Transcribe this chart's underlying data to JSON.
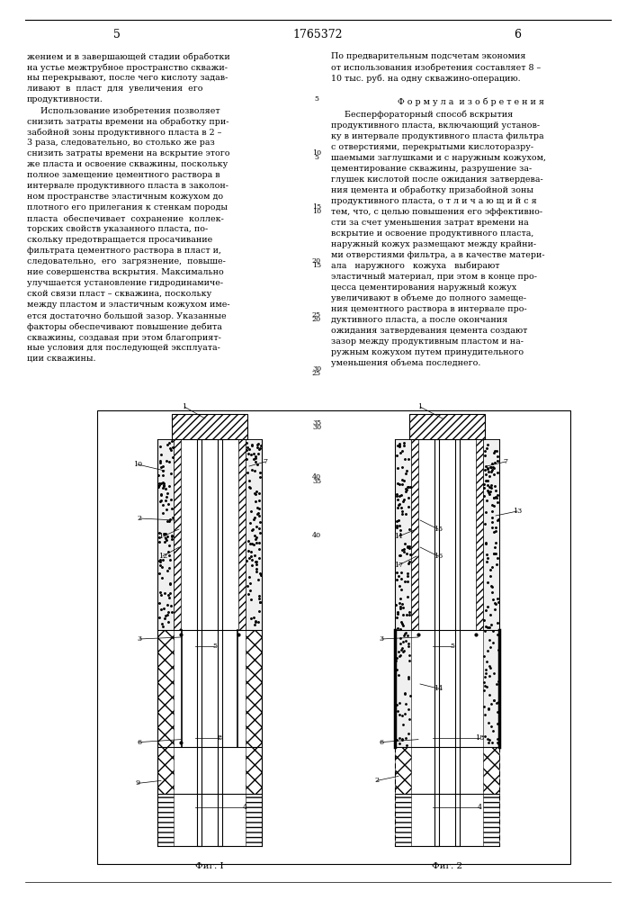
{
  "page_width": 7.07,
  "page_height": 10.0,
  "bg_color": "#ffffff",
  "header_number_left": "5",
  "header_center": "1765372",
  "header_number_right": "6",
  "left_column_text": [
    "жением и в завершающей стадии обработки",
    "на устье межтрубное пространство скважи-",
    "ны перекрывают, после чего кислоту задав-",
    "ливают  в  пласт  для  увеличения  его",
    "продуктивности.",
    "     Использование изобретения позволяет",
    "снизить затраты времени на обработку при-",
    "забойной зоны продуктивного пласта в 2 –",
    "3 раза, следовательно, во столько же раз",
    "снизить затраты времени на вскрытие этого",
    "же пласта и освоение скважины, поскольку",
    "полное замещение цементного раствора в",
    "интервале продуктивного пласта в заколон-",
    "ном пространстве эластичным кожухом до",
    "плотного его прилегания к стенкам породы",
    "пласта  обеспечивает  сохранение  коллек-",
    "торских свойств указанного пласта, по-",
    "скольку предотвращается просачивание",
    "фильтрата цементного раствора в пласт и,",
    "следовательно,  его  загрязнение,  повыше-",
    "ние совершенства вскрытия. Максимально",
    "улучшается установление гидродинамиче-",
    "ской связи пласт – скважина, поскольку",
    "между пластом и эластичным кожухом име-",
    "ется достаточно большой зазор. Указанные",
    "факторы обеспечивают повышение дебита",
    "скважины, создавая при этом благоприят-",
    "ные условия для последующей эксплуата-",
    "ции скважины."
  ],
  "right_column_text_top": [
    "По предварительным подсчетам экономия",
    "от использования изобретения составляет 8 –",
    "10 тыс. руб. на одну скважино-операцию."
  ],
  "formula_header": "Ф о р м у л а  и з о б р е т е н и я",
  "right_column_text_body": [
    "     Бесперфораторный способ вскрытия",
    "продуктивного пласта, включающий установ-",
    "ку в интервале продуктивного пласта фильтра",
    "с отверстиями, перекрытыми кислоторазру-",
    "шаемыми заглушками и с наружным кожухом,",
    "цементирование скважины, разрушение за-",
    "глушек кислотой после ожидания затвердева-",
    "ния цемента и обработку призабойной зоны",
    "продуктивного пласта, о т л и ч а ю щ и й с я",
    "тем, что, с целью повышения его эффективно-",
    "сти за счет уменьшения затрат времени на",
    "вскрытие и освоение продуктивного пласта,",
    "наружный кожух размещают между крайни-",
    "ми отверстиями фильтра, а в качестве матери-",
    "ала   наружного   кожуха   выбирают",
    "эластичный материал, при этом в конце про-",
    "цесса цементирования наружный кожух",
    "увеличивают в объеме до полного замеще-",
    "ния цементного раствора в интервале про-",
    "дуктивного пласта, а после окончания",
    "ожидания затвердевания цемента создают",
    "зазор между продуктивным пластом и на-",
    "ружным кожухом путем принудительного",
    "уменьшения объема последнего."
  ],
  "fig1_label": "Фиг. I",
  "fig2_label": "Фиг. 2"
}
